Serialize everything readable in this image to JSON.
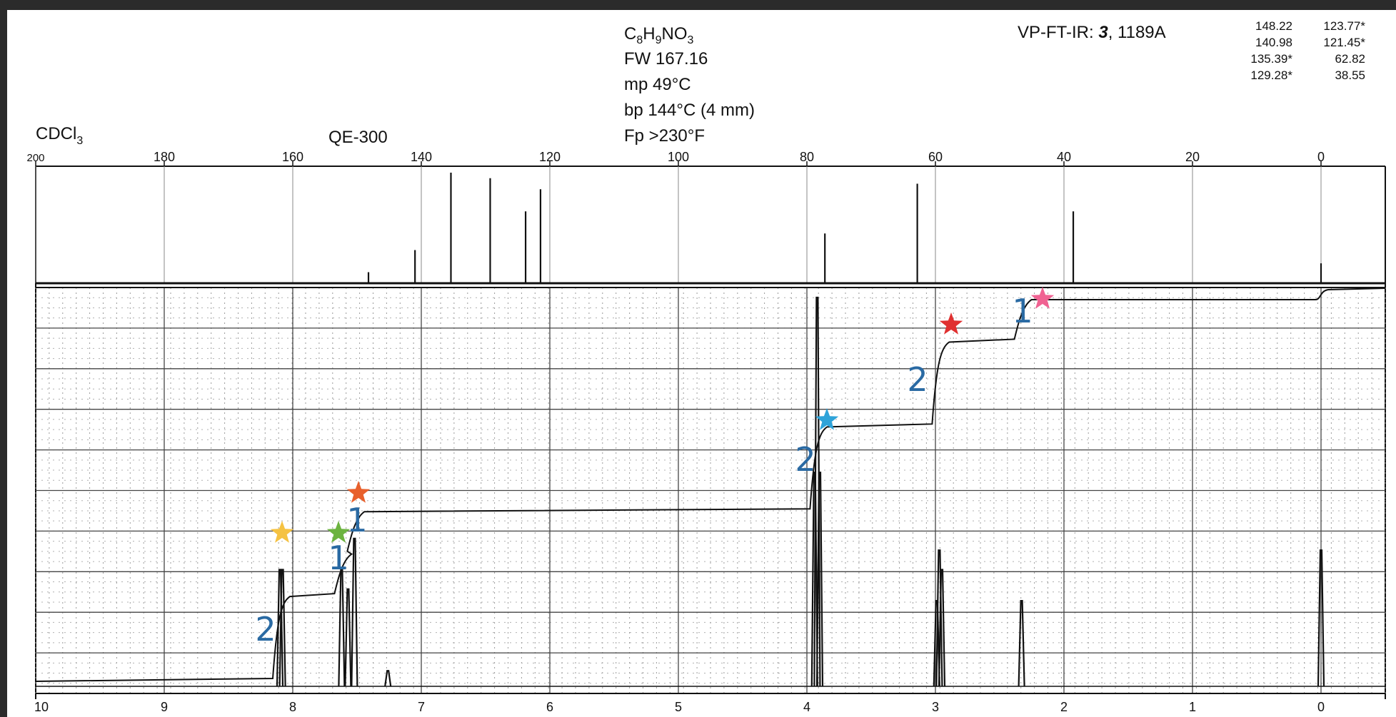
{
  "header": {
    "formula": {
      "c": "C",
      "c_sub": "8",
      "h": "H",
      "h_sub": "9",
      "rest": "NO",
      "o_sub": "3"
    },
    "fw": "FW 167.16",
    "mp": "mp 49°C",
    "bp": "bp 144°C (4 mm)",
    "fp": "Fp >230°F",
    "ir_prefix": "VP-FT-IR: ",
    "ir_bold": "3",
    "ir_suffix": ", 1189A",
    "solvent": {
      "main": "CDCl",
      "sub": "3"
    },
    "instrument": "QE-300",
    "peak_list": [
      [
        "148.22",
        "123.77*"
      ],
      [
        "140.98",
        "121.45*"
      ],
      [
        "135.39*",
        "62.82"
      ],
      [
        "129.28*",
        "38.55"
      ]
    ]
  },
  "colors": {
    "background": "#2b2b2b",
    "paper": "#ffffff",
    "ink": "#111111",
    "annotation": "#2a6aa3",
    "star_yellow": "#f5c242",
    "star_green": "#6cb33f",
    "star_orange": "#e8602c",
    "star_blue": "#2ea3d9",
    "star_red": "#e03030",
    "star_pink": "#f06292"
  },
  "chart_data": [
    {
      "type": "line",
      "name": "13C spectrum",
      "x_axis": {
        "range": [
          200,
          -10
        ],
        "ticks": [
          "200",
          "180",
          "160",
          "140",
          "120",
          "100",
          "80",
          "60",
          "40",
          "20",
          "0"
        ]
      },
      "peaks_ppm": [
        148.22,
        140.98,
        135.39,
        129.28,
        123.77,
        121.45,
        77.2,
        62.82,
        38.55,
        0
      ],
      "peak_heights_rel": [
        0.1,
        0.3,
        1.0,
        0.95,
        0.65,
        0.85,
        0.45,
        0.9,
        0.65,
        0.18
      ]
    },
    {
      "type": "line",
      "name": "1H spectrum",
      "x_axis": {
        "range": [
          10,
          -0.5
        ],
        "ticks": [
          "10",
          "9",
          "8",
          "7",
          "6",
          "5",
          "4",
          "3",
          "2",
          "1",
          "0"
        ]
      },
      "peaks_ppm": [
        8.1,
        8.08,
        7.62,
        7.57,
        7.52,
        7.26,
        3.94,
        3.92,
        3.9,
        2.99,
        2.97,
        2.95,
        2.33,
        0
      ],
      "peak_heights_rel": [
        0.3,
        0.3,
        0.3,
        0.25,
        0.38,
        0.04,
        0.55,
        1.0,
        0.55,
        0.22,
        0.35,
        0.3,
        0.22,
        0.35
      ],
      "integration_steps": [
        {
          "ppm": 8.1,
          "value": "2"
        },
        {
          "ppm": 7.62,
          "value": "1"
        },
        {
          "ppm": 7.52,
          "value": "1"
        },
        {
          "ppm": 3.92,
          "value": "2"
        },
        {
          "ppm": 2.97,
          "value": "2"
        },
        {
          "ppm": 2.33,
          "value": "1"
        }
      ]
    }
  ],
  "annotations": {
    "integrals": [
      "2",
      "1",
      "1",
      "2",
      "2",
      "1"
    ],
    "stars": [
      "yellow",
      "green",
      "orange",
      "blue",
      "red",
      "pink"
    ]
  }
}
